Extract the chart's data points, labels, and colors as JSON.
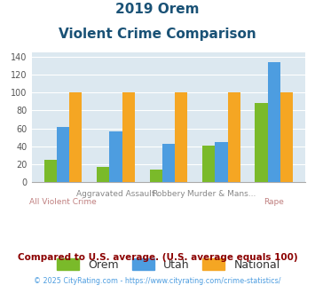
{
  "title_line1": "2019 Orem",
  "title_line2": "Violent Crime Comparison",
  "orem": [
    25,
    17,
    14,
    41,
    88
  ],
  "utah": [
    62,
    57,
    43,
    45,
    134
  ],
  "national": [
    100,
    100,
    100,
    100,
    100
  ],
  "orem_color": "#7aba2a",
  "utah_color": "#4d9de0",
  "national_color": "#f5a623",
  "background_color": "#dce8f0",
  "ylim": [
    0,
    145
  ],
  "yticks": [
    0,
    20,
    40,
    60,
    80,
    100,
    120,
    140
  ],
  "legend_labels": [
    "Orem",
    "Utah",
    "National"
  ],
  "labels_top": [
    "",
    "Aggravated Assault",
    "Robbery",
    "Murder & Mans...",
    ""
  ],
  "labels_bottom": [
    "All Violent Crime",
    "",
    "",
    "",
    "Rape"
  ],
  "footnote1": "Compared to U.S. average. (U.S. average equals 100)",
  "footnote2": "© 2025 CityRating.com - https://www.cityrating.com/crime-statistics/",
  "title_color": "#1a5276",
  "footnote1_color": "#8b0000",
  "footnote2_color": "#4d9de0"
}
